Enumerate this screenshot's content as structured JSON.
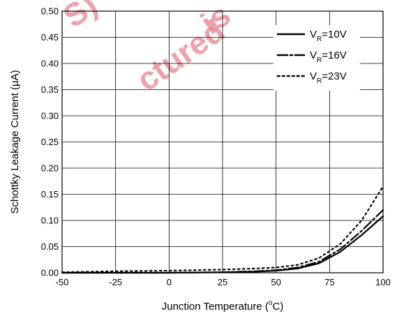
{
  "chart_data": {
    "type": "line",
    "xlabel_main": "Junction Temperature (",
    "xlabel_sup": "o",
    "xlabel_end": "C)",
    "ylabel": "Schottky Leakage Current (µA)",
    "xlim": [
      -50,
      100
    ],
    "ylim": [
      0,
      0.5
    ],
    "xticks": [
      "-50",
      "-25",
      "0",
      "25",
      "50",
      "75",
      "100"
    ],
    "yticks": [
      "0.00",
      "0.05",
      "0.10",
      "0.15",
      "0.20",
      "0.25",
      "0.30",
      "0.35",
      "0.40",
      "0.45",
      "0.50"
    ],
    "grid": true,
    "legend_position": "top-right",
    "watermark": [
      "is",
      "ctured",
      "S)"
    ],
    "series": [
      {
        "name_main": "V",
        "name_sub": "R",
        "name_end": "=10V",
        "style": "solid",
        "points": [
          [
            -50,
            0.0
          ],
          [
            -25,
            0.0
          ],
          [
            0,
            0.0
          ],
          [
            25,
            0.001
          ],
          [
            40,
            0.002
          ],
          [
            50,
            0.004
          ],
          [
            60,
            0.008
          ],
          [
            70,
            0.018
          ],
          [
            80,
            0.04
          ],
          [
            90,
            0.072
          ],
          [
            100,
            0.108
          ]
        ]
      },
      {
        "name_main": "V",
        "name_sub": "R",
        "name_end": "=16V",
        "style": "dashdot",
        "points": [
          [
            -50,
            0.0
          ],
          [
            -25,
            0.0
          ],
          [
            0,
            0.0
          ],
          [
            25,
            0.001
          ],
          [
            40,
            0.003
          ],
          [
            50,
            0.005
          ],
          [
            60,
            0.01
          ],
          [
            70,
            0.021
          ],
          [
            80,
            0.045
          ],
          [
            90,
            0.08
          ],
          [
            100,
            0.12
          ]
        ]
      },
      {
        "name_main": "V",
        "name_sub": "R",
        "name_end": "=23V",
        "style": "dotted",
        "points": [
          [
            -50,
            0.001
          ],
          [
            -25,
            0.003
          ],
          [
            0,
            0.004
          ],
          [
            25,
            0.006
          ],
          [
            40,
            0.008
          ],
          [
            50,
            0.01
          ],
          [
            60,
            0.015
          ],
          [
            70,
            0.028
          ],
          [
            80,
            0.055
          ],
          [
            90,
            0.1
          ],
          [
            100,
            0.165
          ]
        ]
      }
    ]
  }
}
